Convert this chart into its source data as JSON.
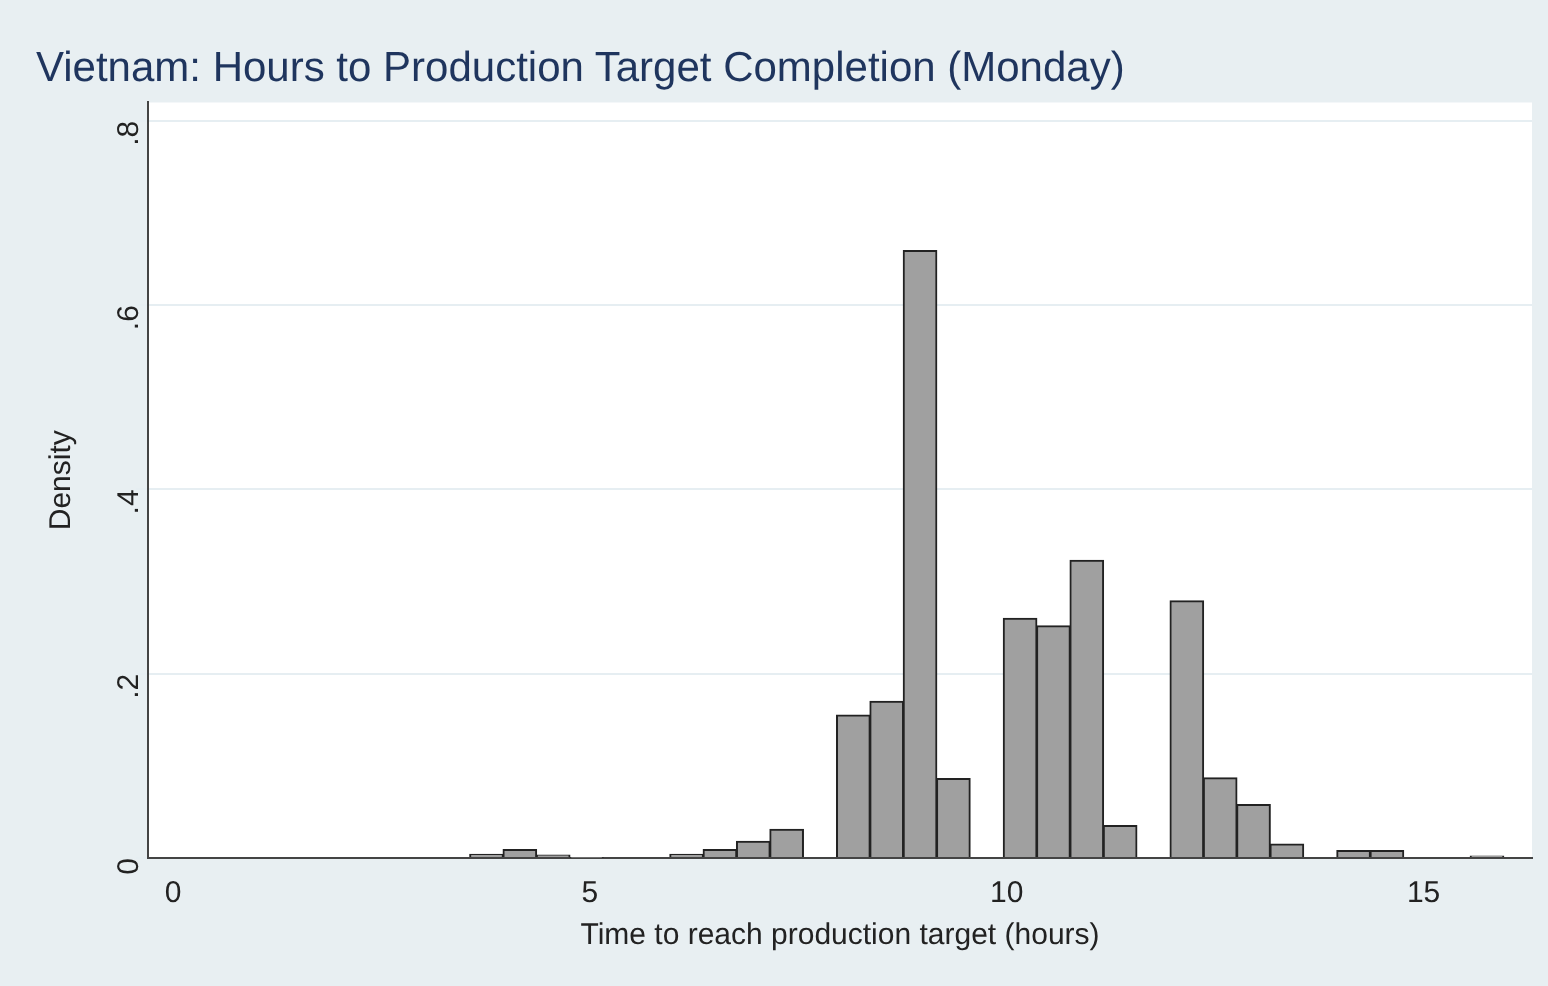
{
  "chart_data": {
    "type": "histogram",
    "title": "Vietnam: Hours to Production Target Completion (Monday)",
    "xlabel": "Time to reach production target (hours)",
    "ylabel": "Density",
    "bins": [
      3.56,
      3.96,
      4.36,
      4.76,
      5.16,
      5.56,
      5.96,
      6.36,
      6.76,
      7.16,
      7.56,
      7.96,
      8.36,
      8.76,
      9.16,
      9.56,
      9.96,
      10.36,
      10.76,
      11.16,
      11.56,
      11.96,
      12.36,
      12.76,
      13.16,
      13.56,
      13.96,
      14.36,
      14.76,
      15.16,
      15.56,
      15.96
    ],
    "values": [
      0.004,
      0.009,
      0.003,
      0.001,
      0,
      0,
      0.004,
      0.009,
      0.018,
      0.031,
      0,
      0.155,
      0.17,
      0.659,
      0.086,
      0,
      0.26,
      0.252,
      0.323,
      0.035,
      0,
      0.279,
      0.087,
      0.058,
      0.015,
      0,
      0.008,
      0.008,
      0,
      0,
      0.002
    ],
    "color": "#a0a0a0",
    "xlim": [
      -0.3,
      16.3
    ],
    "xticks": [
      0,
      5,
      10,
      15
    ],
    "ylim": [
      0,
      0.82
    ],
    "yticks": [
      0,
      {
        "value": 0.2,
        "label": ".2"
      },
      {
        "value": 0.4,
        "label": ".4"
      },
      {
        "value": 0.6,
        "label": ".6"
      },
      {
        "value": 0.8,
        "label": ".8"
      }
    ],
    "grid": "y"
  }
}
